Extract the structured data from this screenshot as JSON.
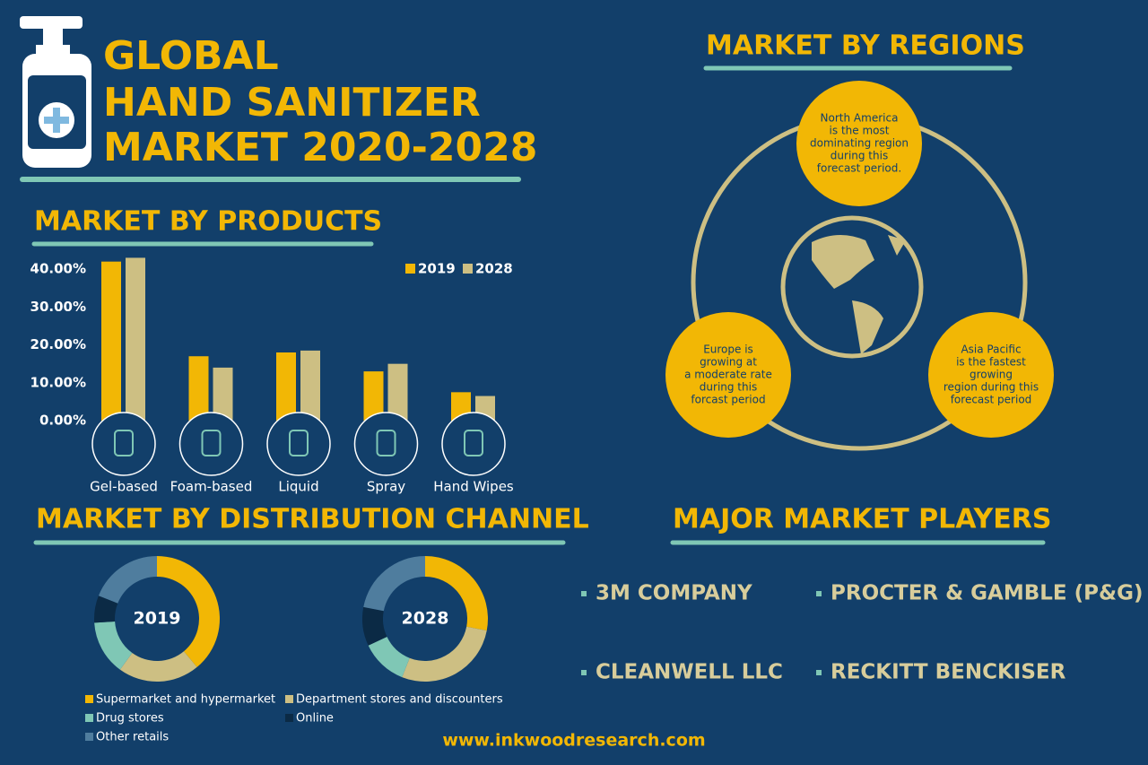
{
  "title": [
    "GLOBAL",
    "HAND SANITIZER",
    "MARKET 2020-2028"
  ],
  "chart_data": [
    {
      "type": "bar",
      "title": "MARKET BY PRODUCTS",
      "categories": [
        "Gel-based",
        "Foam-based",
        "Liquid",
        "Spray",
        "Hand Wipes"
      ],
      "series": [
        {
          "name": "2019",
          "color": "#f2b705",
          "values": [
            42,
            17,
            18,
            13,
            7.5
          ]
        },
        {
          "name": "2028",
          "color": "#cdbf83",
          "values": [
            43,
            14,
            18.5,
            15,
            6.5
          ]
        }
      ],
      "ylim": [
        0,
        45
      ],
      "yticks": [
        {
          "value": 0,
          "label": "0.00%"
        },
        {
          "value": 10,
          "label": "10.00%"
        },
        {
          "value": 20,
          "label": "20.00%"
        },
        {
          "value": 30,
          "label": "30.00%"
        },
        {
          "value": 40,
          "label": "40.00%"
        }
      ],
      "legend": "top-right"
    },
    {
      "type": "donut",
      "title": "MARKET BY DISTRIBUTION CHANNEL",
      "categories": [
        "Supermarket and hypermarket",
        "Department stores and discounters",
        "Drug stores",
        "Online",
        "Other retails"
      ],
      "colors": [
        "#f2b705",
        "#cdbf83",
        "#7fc7b5",
        "#0b2a45",
        "#4f7d9e"
      ],
      "series": [
        {
          "name": "2019",
          "values": [
            39,
            21,
            14,
            7,
            19
          ]
        },
        {
          "name": "2028",
          "values": [
            28,
            28,
            12,
            10,
            22
          ]
        }
      ]
    }
  ],
  "regions": {
    "title": "MARKET BY REGIONS",
    "notes": [
      [
        "North America",
        "is the most",
        "dominating region",
        "during this",
        "forecast period."
      ],
      [
        "Europe is",
        "growing at",
        "a moderate rate",
        "during this",
        "forcast period"
      ],
      [
        "Asia Pacific",
        "is the fastest",
        "growing",
        "region during this",
        "forecast period"
      ]
    ]
  },
  "players": {
    "title": "MAJOR MARKET PLAYERS",
    "items": [
      "3M COMPANY",
      "PROCTER & GAMBLE (P&G)",
      "CLEANWELL LLC",
      "RECKITT BENCKISER"
    ]
  },
  "footer": "www.inkwoodresearch.com"
}
